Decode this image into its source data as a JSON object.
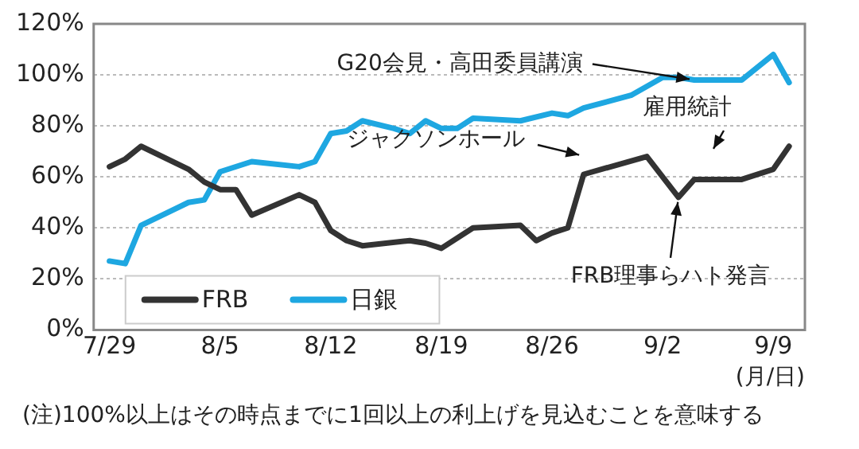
{
  "chart_data": {
    "type": "line",
    "xlabel": "(月/日)",
    "xlim": [
      "--07-28",
      "--09-11"
    ],
    "xticks": [
      {
        "value": "--07-29",
        "label": "7/29"
      },
      {
        "value": "--08-05",
        "label": "8/5"
      },
      {
        "value": "--08-12",
        "label": "8/12"
      },
      {
        "value": "--08-19",
        "label": "8/19"
      },
      {
        "value": "--08-26",
        "label": "8/26"
      },
      {
        "value": "--09-02",
        "label": "9/2"
      },
      {
        "value": "--09-09",
        "label": "9/9"
      }
    ],
    "ylim": [
      0,
      120
    ],
    "yticks": [
      {
        "value": 0,
        "label": "0%"
      },
      {
        "value": 20,
        "label": "20%"
      },
      {
        "value": 40,
        "label": "40%"
      },
      {
        "value": 60,
        "label": "60%"
      },
      {
        "value": 80,
        "label": "80%"
      },
      {
        "value": 100,
        "label": "100%"
      },
      {
        "value": 120,
        "label": "120%"
      }
    ],
    "grid": "y",
    "legend": "bottom left",
    "marker": "none",
    "line_style": "solid",
    "series": [
      {
        "name": "FRB",
        "color": "#333333",
        "x": [
          "--07-29",
          "--07-30",
          "--07-31",
          "--08-03",
          "--08-04",
          "--08-05",
          "--08-06",
          "--08-07",
          "--08-10",
          "--08-11",
          "--08-12",
          "--08-13",
          "--08-14",
          "--08-17",
          "--08-18",
          "--08-19",
          "--08-21",
          "--08-24",
          "--08-25",
          "--08-26",
          "--08-27",
          "--08-28",
          "--09-01",
          "--09-03",
          "--09-04",
          "--09-07",
          "--09-09",
          "--09-10"
        ],
        "values": [
          64,
          67,
          72,
          63,
          58,
          55,
          55,
          45,
          53,
          50,
          39,
          35,
          33,
          35,
          34,
          32,
          40,
          41,
          35,
          38,
          40,
          61,
          68,
          52,
          59,
          59,
          63,
          72
        ]
      },
      {
        "name": "日銀",
        "color": "#1ea7e1",
        "x": [
          "--07-29",
          "--07-30",
          "--07-31",
          "--08-03",
          "--08-04",
          "--08-05",
          "--08-07",
          "--08-10",
          "--08-11",
          "--08-12",
          "--08-13",
          "--08-14",
          "--08-16",
          "--08-17",
          "--08-18",
          "--08-19",
          "--08-20",
          "--08-21",
          "--08-24",
          "--08-26",
          "--08-27",
          "--08-28",
          "--08-31",
          "--09-02",
          "--09-03",
          "--09-04",
          "--09-07",
          "--09-09",
          "--09-10"
        ],
        "values": [
          27,
          26,
          41,
          50,
          51,
          62,
          66,
          64,
          66,
          77,
          78,
          82,
          79,
          77,
          82,
          79,
          79,
          83,
          82,
          85,
          84,
          87,
          92,
          99,
          99,
          98,
          98,
          108,
          97
        ]
      }
    ],
    "annotations": [
      {
        "text": "G20会見・高田委員講演",
        "x": "--09-04",
        "y": 98
      },
      "ジャクソンホール",
      "雇用統計",
      {
        "text": "FRB理事らハト発言",
        "x": "--09-03",
        "y": 52
      },
      "(注)100%以上はその時点までに1回以上の利上げを見込むことを意味する"
    ]
  }
}
